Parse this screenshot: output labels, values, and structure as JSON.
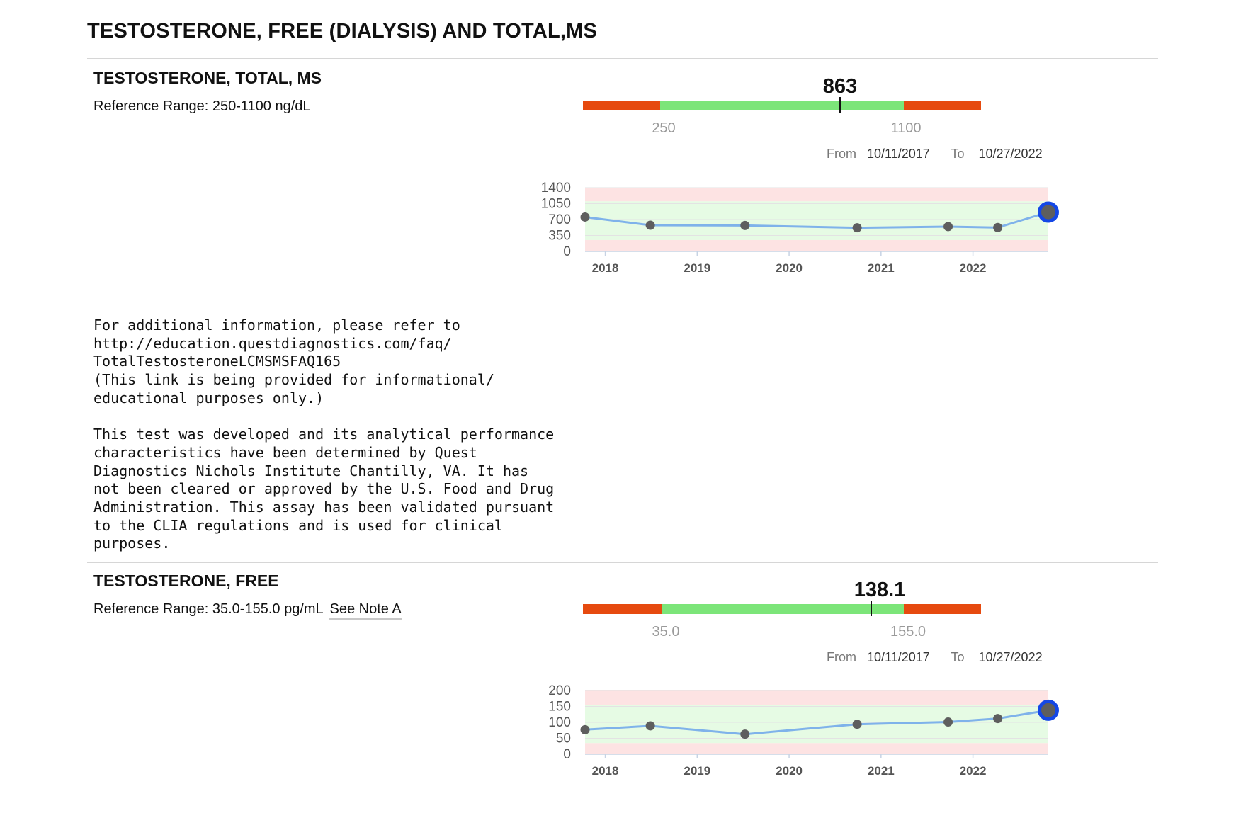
{
  "page": {
    "title": "TESTOSTERONE, FREE (DIALYSIS) AND TOTAL,MS"
  },
  "sections": [
    {
      "name": "TESTOSTERONE, TOTAL, MS",
      "reference_range": "Reference Range: 250-1100 ng/dL",
      "value_text": "863",
      "range_low_label": "250",
      "range_high_label": "1100",
      "from_label": "From",
      "from_date": "10/11/2017",
      "to_label": "To",
      "to_date": "10/27/2022"
    },
    {
      "name": "TESTOSTERONE, FREE",
      "reference_range": "Reference Range: 35.0-155.0 pg/mL",
      "see_note": "See Note A",
      "value_text": "138.1",
      "range_low_label": "35.0",
      "range_high_label": "155.0",
      "from_label": "From",
      "from_date": "10/11/2017",
      "to_label": "To",
      "to_date": "10/27/2022"
    }
  ],
  "note_text": "For additional information, please refer to\nhttp://education.questdiagnostics.com/faq/\nTotalTestosteroneLCMSMSFAQ165\n(This link is being provided for informational/\neducational purposes only.)\n\nThis test was developed and its analytical performance\ncharacteristics have been determined by Quest\nDiagnostics Nichols Institute Chantilly, VA. It has\nnot been cleared or approved by the U.S. Food and Drug\nAdministration. This assay has been validated pursuant\nto the CLIA regulations and is used for clinical\npurposes.",
  "colors": {
    "out_of_range": "#e64a0f",
    "in_range": "#7ce579",
    "line": "#7fb2ea",
    "point": "#5e5e5e",
    "latest_point_ring": "#1447e6",
    "chart_band_normal": "#e6fbe4",
    "chart_band_abnormal": "#fde3e3"
  },
  "chart_data": [
    {
      "type": "line",
      "title": "",
      "x_start": 2017.78,
      "x_end": 2022.82,
      "xticks": [
        2018,
        2019,
        2020,
        2021,
        2022
      ],
      "xtick_labels": [
        "2018",
        "2019",
        "2020",
        "2021",
        "2022"
      ],
      "ylim": [
        0,
        1400
      ],
      "yticks": [
        0,
        350,
        700,
        1050,
        1400
      ],
      "ytick_labels": [
        "0",
        "350",
        "700",
        "1050",
        "1400"
      ],
      "normal_band": [
        250,
        1100
      ],
      "x": [
        2017.78,
        2018.49,
        2019.52,
        2020.74,
        2021.73,
        2022.27,
        2022.82
      ],
      "values": [
        755,
        575,
        570,
        520,
        545,
        525,
        863
      ],
      "latest": 863
    },
    {
      "type": "line",
      "title": "",
      "x_start": 2017.78,
      "x_end": 2022.82,
      "xticks": [
        2018,
        2019,
        2020,
        2021,
        2022
      ],
      "xtick_labels": [
        "2018",
        "2019",
        "2020",
        "2021",
        "2022"
      ],
      "ylim": [
        0,
        200
      ],
      "yticks": [
        0,
        50,
        100,
        150,
        200
      ],
      "ytick_labels": [
        "0",
        "50",
        "100",
        "150",
        "200"
      ],
      "normal_band": [
        35,
        155
      ],
      "x": [
        2017.78,
        2018.49,
        2019.52,
        2020.74,
        2021.73,
        2022.27,
        2022.82
      ],
      "values": [
        77,
        89,
        63,
        94,
        101,
        112,
        138.1
      ],
      "latest": 138.1
    }
  ]
}
